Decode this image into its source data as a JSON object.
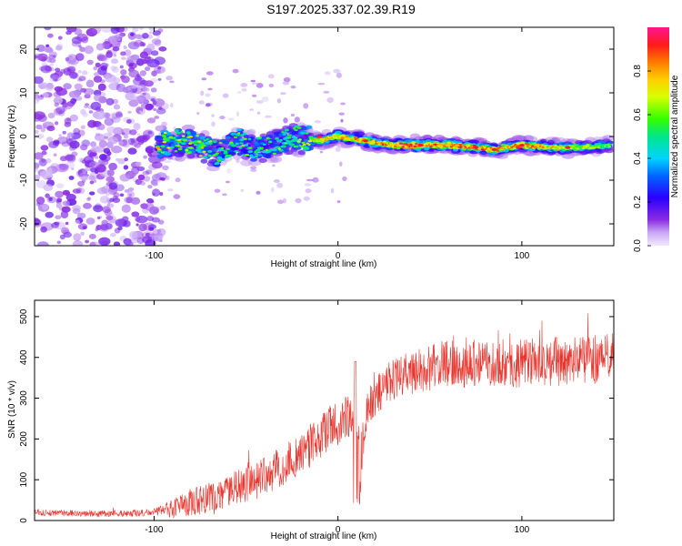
{
  "title": "S197.2025.337.02.39.R19",
  "colors": {
    "snr_line": "#e8362f",
    "noise": "#8a2be2"
  },
  "top_chart": {
    "type": "heatmap",
    "xlabel": "Height of straight line (km)",
    "ylabel": "Frequency (Hz)",
    "xlim": [
      -165,
      150
    ],
    "ylim": [
      -25,
      25
    ],
    "xticks": [
      -100,
      0,
      100
    ],
    "yticks": [
      -20,
      -10,
      0,
      10,
      20
    ],
    "colorbar": {
      "label": "Normalized spectral amplitude",
      "range": [
        0,
        1
      ],
      "ticks": [
        "0.0",
        "0.2",
        "0.4",
        "0.6",
        "0.8"
      ]
    }
  },
  "bottom_chart": {
    "type": "line",
    "xlabel": "Height of straight line (km)",
    "ylabel": "SNR (10 * v/v)",
    "xlim": [
      -165,
      150
    ],
    "ylim": [
      0,
      540
    ],
    "xticks": [
      -100,
      0,
      100
    ],
    "yticks": [
      0,
      100,
      200,
      300,
      400,
      500
    ]
  },
  "chart_data": [
    {
      "type": "heatmap",
      "title": "S197.2025.337.02.39.R19",
      "xlabel": "Height of straight line (km)",
      "ylabel": "Frequency (Hz)",
      "x_range": [
        -165,
        150
      ],
      "y_range": [
        -25,
        25
      ],
      "colorbar_label": "Normalized spectral amplitude",
      "colorbar_range": [
        0,
        1
      ],
      "ridge": [
        {
          "x": -98,
          "f": -2,
          "amp": 0.75
        },
        {
          "x": -85,
          "f": -1,
          "amp": 0.7
        },
        {
          "x": -75,
          "f": -2,
          "amp": 0.75
        },
        {
          "x": -65,
          "f": -4,
          "amp": 0.55
        },
        {
          "x": -55,
          "f": -1,
          "amp": 0.6
        },
        {
          "x": -45,
          "f": -3,
          "amp": 0.55
        },
        {
          "x": -35,
          "f": -2,
          "amp": 0.6
        },
        {
          "x": -25,
          "f": 0,
          "amp": 0.6
        },
        {
          "x": -10,
          "f": -1,
          "amp": 0.75
        },
        {
          "x": 0,
          "f": 0,
          "amp": 0.8
        },
        {
          "x": 15,
          "f": -1,
          "amp": 0.8
        },
        {
          "x": 30,
          "f": -2,
          "amp": 0.9
        },
        {
          "x": 45,
          "f": -2,
          "amp": 0.95
        },
        {
          "x": 60,
          "f": -2,
          "amp": 0.85
        },
        {
          "x": 75,
          "f": -2.5,
          "amp": 0.85
        },
        {
          "x": 85,
          "f": -3,
          "amp": 0.85
        },
        {
          "x": 100,
          "f": -2,
          "amp": 0.85
        },
        {
          "x": 115,
          "f": -2.5,
          "amp": 0.8
        },
        {
          "x": 130,
          "f": -2.5,
          "amp": 0.7
        },
        {
          "x": 148,
          "f": -2,
          "amp": 0.6
        }
      ]
    },
    {
      "type": "line",
      "xlabel": "Height of straight line (km)",
      "ylabel": "SNR (10 * v/v)",
      "x_range": [
        -165,
        150
      ],
      "y_range": [
        0,
        540
      ],
      "series": [
        {
          "name": "SNR",
          "x": [
            -165,
            -150,
            -140,
            -130,
            -120,
            -110,
            -100,
            -95,
            -90,
            -85,
            -80,
            -75,
            -70,
            -65,
            -60,
            -55,
            -50,
            -45,
            -40,
            -35,
            -30,
            -25,
            -20,
            -15,
            -10,
            -5,
            0,
            5,
            10,
            12,
            15,
            20,
            25,
            30,
            40,
            50,
            60,
            70,
            80,
            90,
            100,
            110,
            120,
            130,
            140,
            150
          ],
          "values": [
            20,
            18,
            18,
            17,
            17,
            18,
            20,
            25,
            30,
            40,
            45,
            50,
            55,
            65,
            70,
            80,
            90,
            100,
            110,
            120,
            135,
            150,
            165,
            185,
            205,
            225,
            240,
            255,
            265,
            120,
            260,
            305,
            325,
            345,
            360,
            375,
            385,
            385,
            385,
            385,
            385,
            390,
            390,
            395,
            395,
            400
          ],
          "amplitude": [
            8,
            8,
            8,
            8,
            8,
            8,
            8,
            15,
            25,
            30,
            35,
            35,
            40,
            40,
            40,
            45,
            45,
            45,
            45,
            50,
            50,
            50,
            50,
            55,
            55,
            55,
            55,
            55,
            55,
            80,
            50,
            50,
            50,
            55,
            55,
            60,
            60,
            60,
            60,
            60,
            60,
            60,
            60,
            60,
            60,
            60
          ]
        }
      ]
    }
  ]
}
